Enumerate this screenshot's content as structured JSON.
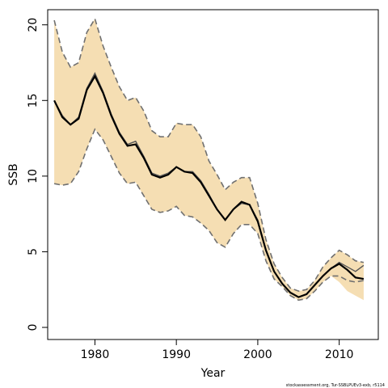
{
  "chart_data": {
    "type": "line",
    "xlabel": "Year",
    "ylabel": "SSB",
    "xlim": [
      1974.2,
      2014.8
    ],
    "ylim": [
      -0.8,
      21.0
    ],
    "xticks": [
      1980,
      1990,
      2000,
      2010
    ],
    "yticks": [
      0,
      5,
      10,
      15,
      20
    ],
    "grid": false,
    "colors": {
      "band": "#f5deb3",
      "median": "#000000",
      "estimate": "#555555",
      "bounds": "#707070"
    },
    "x": [
      1975,
      1976,
      1977,
      1978,
      1979,
      1980,
      1981,
      1982,
      1983,
      1984,
      1985,
      1986,
      1987,
      1988,
      1989,
      1990,
      1991,
      1992,
      1993,
      1994,
      1995,
      1996,
      1997,
      1998,
      1999,
      2000,
      2001,
      2002,
      2003,
      2004,
      2005,
      2006,
      2007,
      2008,
      2009,
      2010,
      2011,
      2012,
      2013
    ],
    "series": [
      {
        "role": "upper-bound",
        "values": [
          20.3,
          18.2,
          17.2,
          17.5,
          19.5,
          20.4,
          18.6,
          17.2,
          15.9,
          15.0,
          15.2,
          14.3,
          13.0,
          12.6,
          12.6,
          13.5,
          13.4,
          13.4,
          12.6,
          11.0,
          10.1,
          9.1,
          9.6,
          9.9,
          9.9,
          8.2,
          5.8,
          4.2,
          3.3,
          2.6,
          2.4,
          2.5,
          3.1,
          4.0,
          4.6,
          5.1,
          4.8,
          4.4,
          4.3
        ]
      },
      {
        "role": "lower-bound",
        "values": [
          9.5,
          9.4,
          9.5,
          10.3,
          11.8,
          13.1,
          12.4,
          11.3,
          10.2,
          9.5,
          9.6,
          8.7,
          7.8,
          7.6,
          7.7,
          8.0,
          7.4,
          7.3,
          6.9,
          6.4,
          5.6,
          5.3,
          6.2,
          6.8,
          6.8,
          6.2,
          4.4,
          3.2,
          2.7,
          2.1,
          1.8,
          1.9,
          2.4,
          3.0,
          3.4,
          3.4,
          3.1,
          3.0,
          3.1
        ]
      },
      {
        "role": "estimate",
        "values": [
          15.0,
          14.0,
          13.4,
          13.9,
          15.8,
          16.8,
          15.6,
          14.1,
          12.9,
          12.1,
          12.3,
          11.3,
          10.2,
          10.0,
          10.2,
          10.6,
          10.3,
          10.3,
          9.7,
          8.8,
          7.8,
          7.1,
          7.8,
          8.2,
          8.1,
          7.1,
          5.1,
          3.7,
          2.9,
          2.3,
          2.0,
          2.2,
          2.8,
          3.4,
          3.9,
          4.3,
          4.0,
          3.7,
          4.1
        ]
      },
      {
        "role": "median",
        "values": [
          15.0,
          13.9,
          13.4,
          13.8,
          15.7,
          16.6,
          15.5,
          14.0,
          12.8,
          12.0,
          12.1,
          11.2,
          10.1,
          9.9,
          10.1,
          10.6,
          10.3,
          10.2,
          9.6,
          8.7,
          7.8,
          7.1,
          7.8,
          8.3,
          8.1,
          7.0,
          5.1,
          3.7,
          2.9,
          2.3,
          2.0,
          2.2,
          2.8,
          3.4,
          3.9,
          4.2,
          3.8,
          3.3,
          3.2
        ]
      },
      {
        "role": "lower-band-edge",
        "values": [
          9.5,
          9.4,
          9.5,
          10.3,
          11.8,
          13.1,
          12.4,
          11.3,
          10.2,
          9.5,
          9.6,
          8.7,
          7.8,
          7.6,
          7.7,
          8.0,
          7.4,
          7.3,
          6.9,
          6.4,
          5.6,
          5.3,
          6.2,
          6.8,
          6.8,
          6.2,
          4.4,
          3.2,
          2.7,
          2.1,
          1.8,
          1.9,
          2.4,
          3.0,
          3.4,
          3.0,
          2.4,
          2.1,
          1.8
        ]
      }
    ]
  },
  "credit": "stockassessment.org, Tur-SSBLPUEv3-exb, r5114"
}
